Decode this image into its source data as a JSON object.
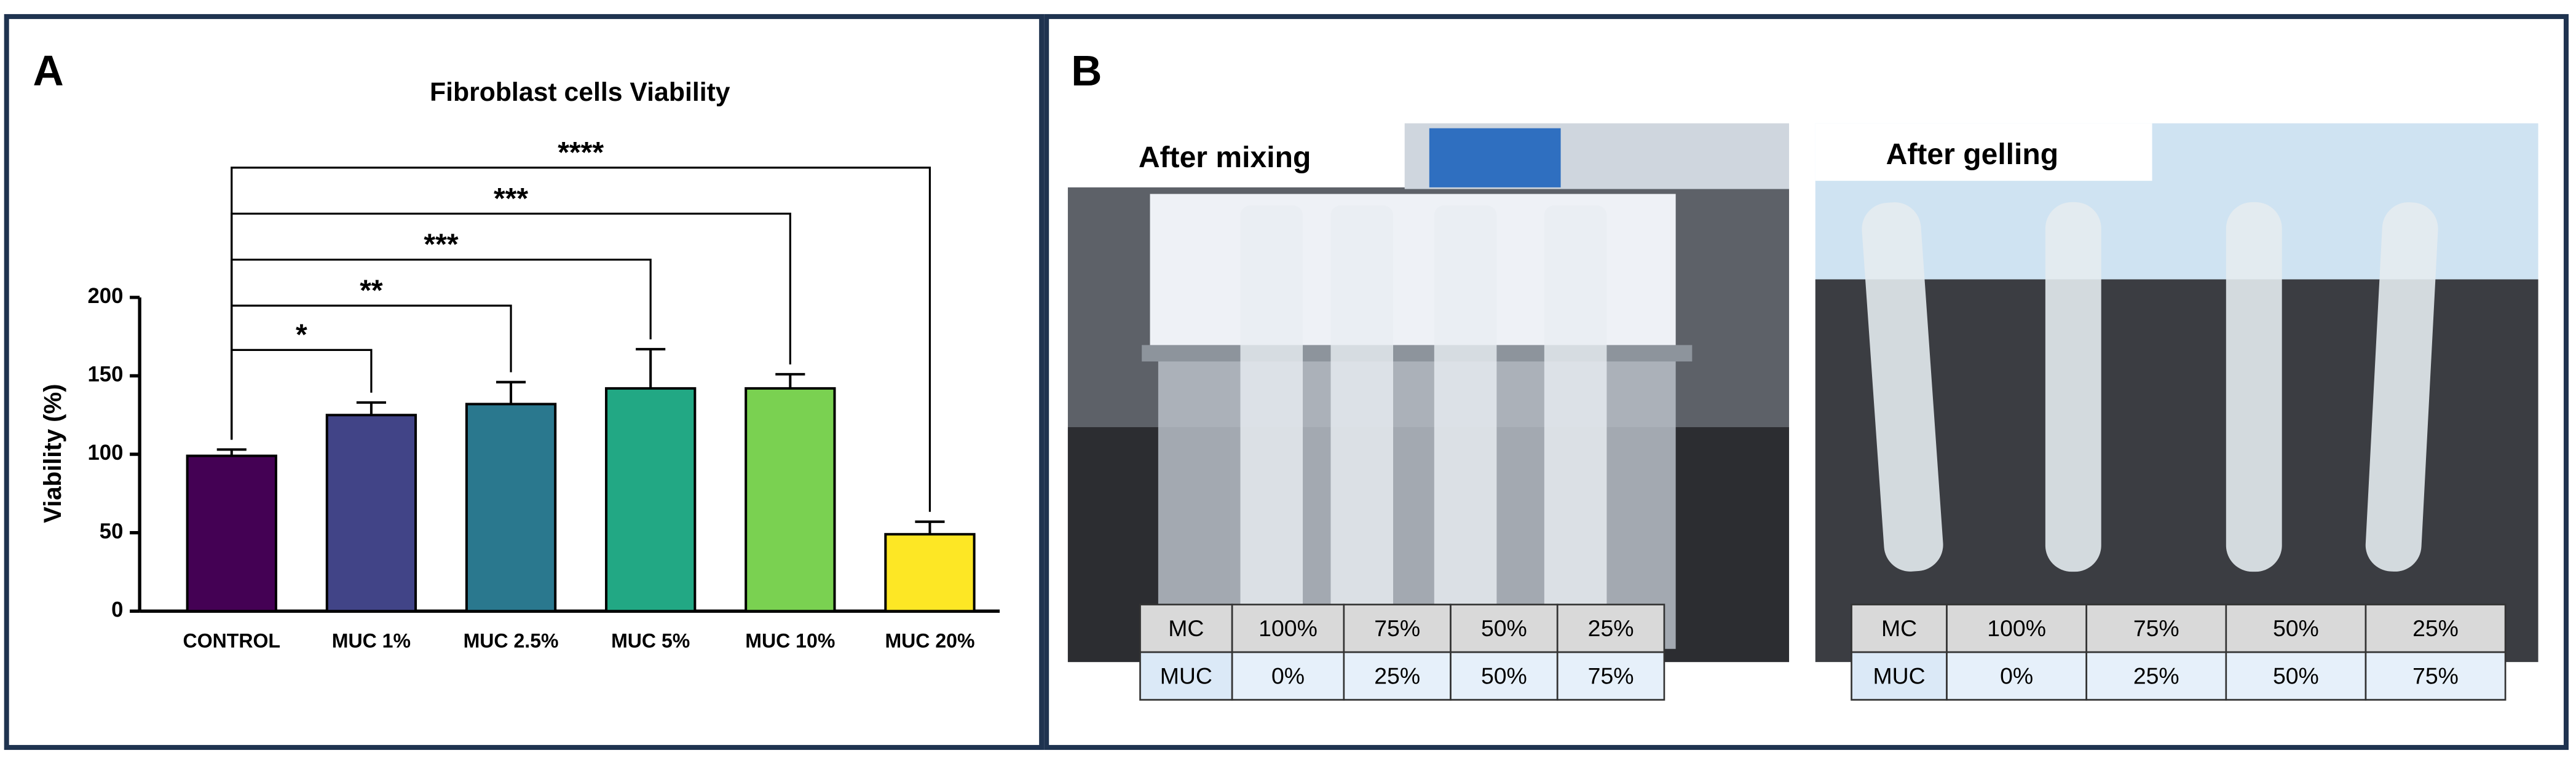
{
  "panel_labels": [
    "A",
    "B"
  ],
  "chart_data": {
    "type": "bar",
    "title": "Fibroblast cells Viability",
    "ylabel": "Viability (%)",
    "categories": [
      "CONTROL",
      "MUC 1%",
      "MUC 2.5%",
      "MUC 5%",
      "MUC 10%",
      "MUC 20%"
    ],
    "values": [
      99,
      125,
      132,
      142,
      142,
      49
    ],
    "errors": [
      4,
      8,
      14,
      25,
      9,
      8
    ],
    "colors": [
      "#440154",
      "#414487",
      "#2a788e",
      "#22a884",
      "#7ad151",
      "#fde725"
    ],
    "ylim": [
      0,
      200
    ],
    "yticks": [
      0,
      50,
      100,
      150,
      200
    ],
    "grid": false,
    "annotations": [
      {
        "text": "*",
        "from": "CONTROL",
        "to": "MUC 1%"
      },
      {
        "text": "**",
        "from": "CONTROL",
        "to": "MUC 2.5%"
      },
      {
        "text": "***",
        "from": "CONTROL",
        "to": "MUC 5%"
      },
      {
        "text": "***",
        "from": "CONTROL",
        "to": "MUC 10%"
      },
      {
        "text": "****",
        "from": "CONTROL",
        "to": "MUC 20%"
      }
    ]
  },
  "photos": [
    {
      "caption": "After mixing",
      "table": {
        "rows": [
          [
            "MC",
            "100%",
            "75%",
            "50%",
            "25%"
          ],
          [
            "MUC",
            "0%",
            "25%",
            "50%",
            "75%"
          ]
        ]
      }
    },
    {
      "caption": "After gelling",
      "table": {
        "rows": [
          [
            "MC",
            "100%",
            "75%",
            "50%",
            "25%"
          ],
          [
            "MUC",
            "0%",
            "25%",
            "50%",
            "75%"
          ]
        ]
      }
    }
  ]
}
